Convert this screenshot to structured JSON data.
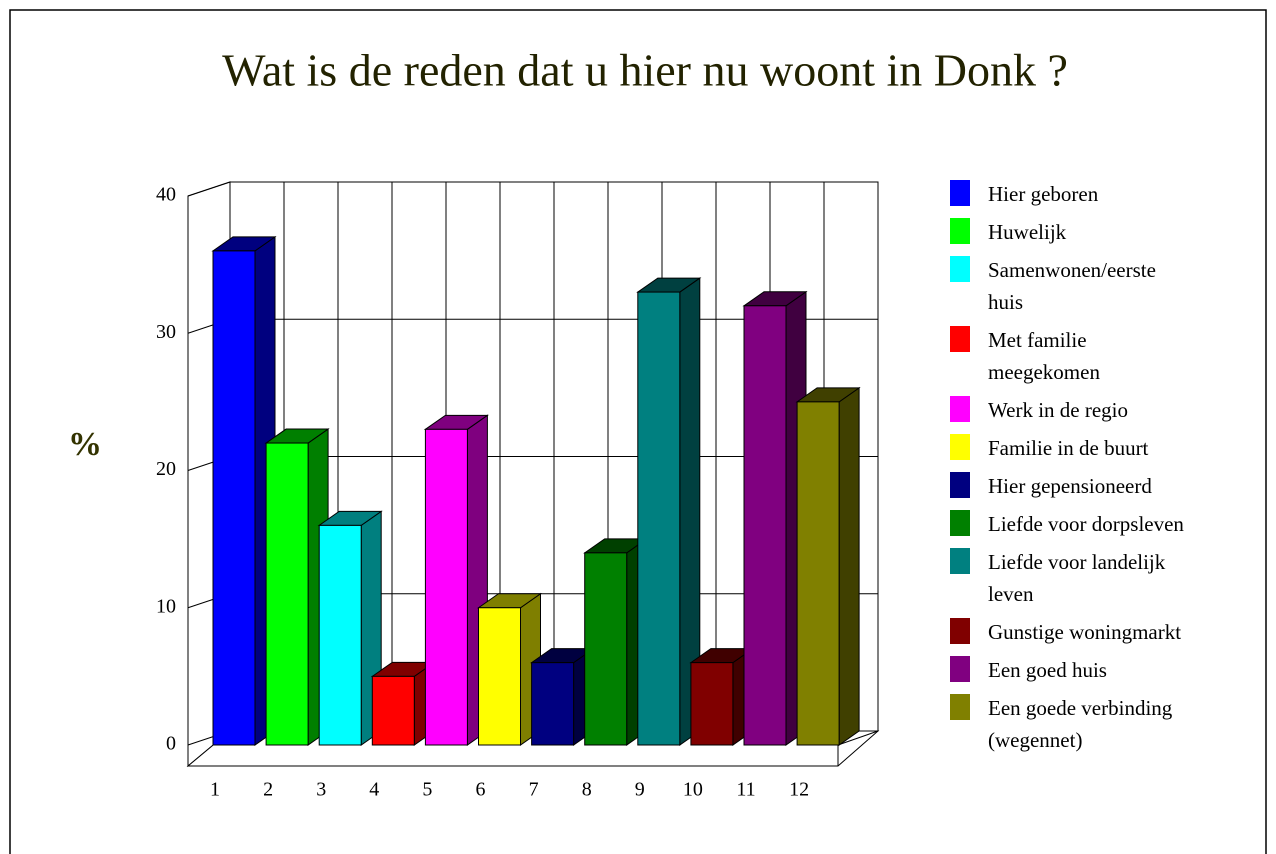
{
  "chart_data": {
    "type": "bar3d",
    "title": "Wat is de reden dat u hier nu woont in Donk ?",
    "ylabel": "%",
    "categories": [
      "1",
      "2",
      "3",
      "4",
      "5",
      "6",
      "7",
      "8",
      "9",
      "10",
      "11",
      "12"
    ],
    "values": [
      36,
      22,
      16,
      5,
      23,
      10,
      6,
      14,
      33,
      6,
      32,
      25
    ],
    "colors": [
      "#0000ff",
      "#00ff00",
      "#00ffff",
      "#ff0000",
      "#ff00ff",
      "#ffff00",
      "#000080",
      "#008000",
      "#008080",
      "#800000",
      "#800080",
      "#808000"
    ],
    "legend": [
      "Hier geboren",
      "Huwelijk",
      "Samenwonen/eerste huis",
      "Met familie meegekomen",
      "Werk in de regio",
      "Familie in de buurt",
      "Hier gepensioneerd",
      "Liefde voor dorpsleven",
      "Liefde voor landelijk leven",
      "Gunstige woningmarkt",
      "Een goed huis",
      "Een goede verbinding (wegennet)"
    ],
    "ylim": [
      0,
      40
    ],
    "yticks": [
      0,
      10,
      20,
      30,
      40
    ],
    "grid": true
  }
}
